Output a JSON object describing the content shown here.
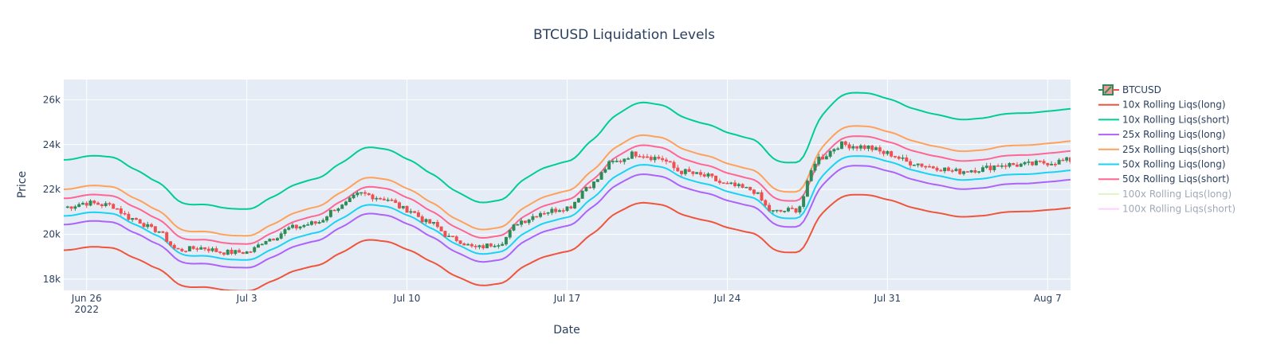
{
  "chart_data": {
    "type": "line",
    "title": "BTCUSD Liquidation Levels",
    "xlabel": "Date",
    "ylabel": "Price",
    "x_range": [
      "2022-06-25",
      "2022-08-08"
    ],
    "ylim": [
      17500,
      26900
    ],
    "grid": true,
    "legend_position": "right",
    "x_ticks": [
      {
        "date": "2022-06-26",
        "label": "Jun 26",
        "sublabel": "2022"
      },
      {
        "date": "2022-07-03",
        "label": "Jul 3"
      },
      {
        "date": "2022-07-10",
        "label": "Jul 10"
      },
      {
        "date": "2022-07-17",
        "label": "Jul 17"
      },
      {
        "date": "2022-07-24",
        "label": "Jul 24"
      },
      {
        "date": "2022-07-31",
        "label": "Jul 31"
      },
      {
        "date": "2022-08-07",
        "label": "Aug 7"
      }
    ],
    "y_ticks": [
      {
        "value": 18000,
        "label": "18k"
      },
      {
        "value": 20000,
        "label": "20k"
      },
      {
        "value": 22000,
        "label": "22k"
      },
      {
        "value": 24000,
        "label": "24k"
      },
      {
        "value": 26000,
        "label": "26k"
      }
    ],
    "price": {
      "name": "BTCUSD",
      "dates": [
        "2022-06-25",
        "2022-06-26",
        "2022-06-27",
        "2022-06-28",
        "2022-06-29",
        "2022-06-30",
        "2022-07-01",
        "2022-07-02",
        "2022-07-03",
        "2022-07-04",
        "2022-07-05",
        "2022-07-06",
        "2022-07-07",
        "2022-07-08",
        "2022-07-09",
        "2022-07-10",
        "2022-07-11",
        "2022-07-12",
        "2022-07-13",
        "2022-07-14",
        "2022-07-15",
        "2022-07-16",
        "2022-07-17",
        "2022-07-18",
        "2022-07-19",
        "2022-07-20",
        "2022-07-21",
        "2022-07-22",
        "2022-07-23",
        "2022-07-24",
        "2022-07-25",
        "2022-07-26",
        "2022-07-27",
        "2022-07-28",
        "2022-07-29",
        "2022-07-30",
        "2022-07-31",
        "2022-08-01",
        "2022-08-02",
        "2022-08-03",
        "2022-08-04",
        "2022-08-05",
        "2022-08-06",
        "2022-08-07",
        "2022-08-08"
      ],
      "values": [
        21200,
        21400,
        21300,
        20700,
        20200,
        19300,
        19400,
        19200,
        19200,
        19800,
        20300,
        20500,
        21200,
        21800,
        21600,
        21100,
        20500,
        19800,
        19400,
        19600,
        20600,
        21000,
        21200,
        22200,
        23200,
        23600,
        23400,
        22800,
        22600,
        22200,
        22000,
        21000,
        21100,
        23400,
        24000,
        23900,
        23600,
        23200,
        23000,
        22800,
        22900,
        23100,
        23100,
        23200,
        23300
      ],
      "up_color": "#2e8b57",
      "down_color": "#ef4f4f"
    },
    "series": [
      {
        "name": "10x Rolling Liqs(long)",
        "color": "#ef553b",
        "offset_pct": -0.09,
        "visible": true
      },
      {
        "name": "10x Rolling Liqs(short)",
        "color": "#00cc96",
        "offset_pct": 0.1,
        "visible": true
      },
      {
        "name": "25x Rolling Liqs(long)",
        "color": "#ab63fa",
        "offset_pct": -0.036,
        "visible": true
      },
      {
        "name": "25x Rolling Liqs(short)",
        "color": "#ffa15a",
        "offset_pct": 0.038,
        "visible": true
      },
      {
        "name": "50x Rolling Liqs(long)",
        "color": "#19d3f3",
        "offset_pct": -0.018,
        "visible": true
      },
      {
        "name": "50x Rolling Liqs(short)",
        "color": "#ff6692",
        "offset_pct": 0.019,
        "visible": true
      },
      {
        "name": "100x Rolling Liqs(long)",
        "color": "#b6e880",
        "offset_pct": -0.009,
        "visible": false
      },
      {
        "name": "100x Rolling Liqs(short)",
        "color": "#ff97ff",
        "offset_pct": 0.009,
        "visible": false
      }
    ]
  }
}
